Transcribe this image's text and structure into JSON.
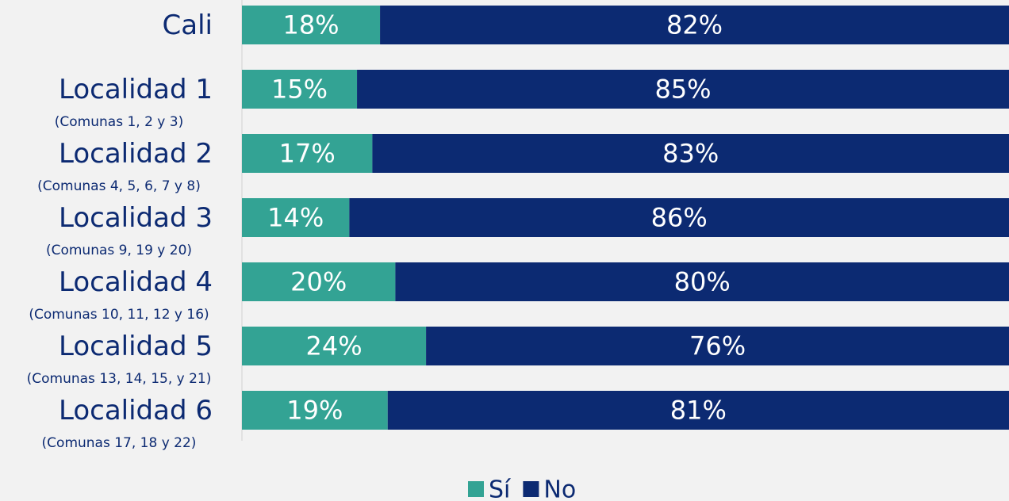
{
  "chart_data": {
    "type": "stacked-bar-horizontal",
    "categories": [
      "Cali",
      "Localidad 1",
      "Localidad 2",
      "Localidad 3",
      "Localidad 4",
      "Localidad 5",
      "Localidad 6"
    ],
    "category_notes": [
      null,
      "(Comunas 1, 2 y 3)",
      "(Comunas 4, 5, 6, 7 y 8)",
      "(Comunas 9, 19 y 20)",
      "(Comunas 10, 11, 12 y 16)",
      "(Comunas 13, 14, 15, y 21)",
      "(Comunas 17, 18 y 22)"
    ],
    "series": [
      {
        "name": "Sí",
        "color": "#33a394",
        "values": [
          18,
          15,
          17,
          14,
          20,
          24,
          19
        ],
        "value_labels": [
          "18%",
          "15%",
          "17%",
          "14%",
          "20%",
          "24%",
          "19%"
        ]
      },
      {
        "name": "No",
        "color": "#0c2a72",
        "values": [
          82,
          85,
          83,
          86,
          80,
          76,
          81
        ],
        "value_labels": [
          "82%",
          "85%",
          "83%",
          "86%",
          "80%",
          "76%",
          "81%"
        ]
      }
    ],
    "xlim": [
      0,
      100
    ],
    "legend": "bottom"
  }
}
